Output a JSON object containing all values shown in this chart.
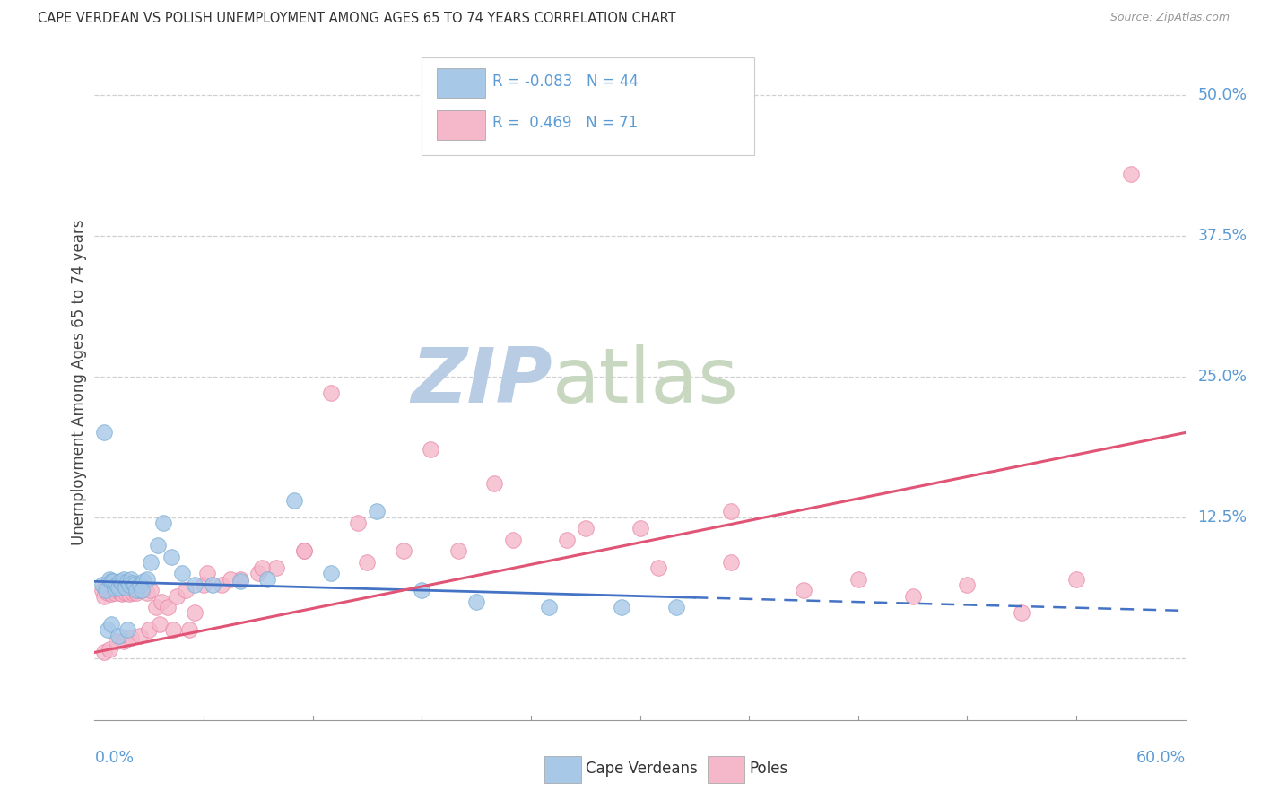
{
  "title": "CAPE VERDEAN VS POLISH UNEMPLOYMENT AMONG AGES 65 TO 74 YEARS CORRELATION CHART",
  "source": "Source: ZipAtlas.com",
  "ylabel": "Unemployment Among Ages 65 to 74 years",
  "xmin": 0.0,
  "xmax": 0.6,
  "ymin": -0.055,
  "ymax": 0.545,
  "yticks": [
    0.0,
    0.125,
    0.25,
    0.375,
    0.5
  ],
  "ytick_labels": [
    "",
    "12.5%",
    "25.0%",
    "37.5%",
    "50.0%"
  ],
  "cv_color": "#a8c8e8",
  "cv_edge_color": "#7aaed4",
  "poles_color": "#f5b8ca",
  "poles_edge_color": "#e888a8",
  "cv_line_color": "#4472c4",
  "poles_line_color": "#e05575",
  "grid_color": "#d0d0d0",
  "title_color": "#333333",
  "right_tick_color": "#5b9bd5",
  "watermark_color": "#c8d8ec",
  "legend_text_color": "#5b9bd5",
  "cape_verdean_x": [
    0.004,
    0.006,
    0.008,
    0.009,
    0.01,
    0.011,
    0.012,
    0.013,
    0.014,
    0.015,
    0.016,
    0.017,
    0.018,
    0.019,
    0.02,
    0.021,
    0.022,
    0.023,
    0.025,
    0.027,
    0.029,
    0.031,
    0.035,
    0.038,
    0.042,
    0.048,
    0.055,
    0.065,
    0.08,
    0.095,
    0.11,
    0.13,
    0.155,
    0.18,
    0.21,
    0.25,
    0.29,
    0.32,
    0.005,
    0.007,
    0.009,
    0.013,
    0.018,
    0.026
  ],
  "cape_verdean_y": [
    0.065,
    0.06,
    0.07,
    0.068,
    0.068,
    0.062,
    0.065,
    0.063,
    0.068,
    0.067,
    0.07,
    0.063,
    0.068,
    0.065,
    0.07,
    0.067,
    0.065,
    0.06,
    0.065,
    0.068,
    0.07,
    0.085,
    0.1,
    0.12,
    0.09,
    0.075,
    0.065,
    0.065,
    0.068,
    0.07,
    0.14,
    0.075,
    0.13,
    0.06,
    0.05,
    0.045,
    0.045,
    0.045,
    0.2,
    0.025,
    0.03,
    0.02,
    0.025,
    0.06
  ],
  "poles_x": [
    0.004,
    0.005,
    0.006,
    0.007,
    0.008,
    0.009,
    0.01,
    0.011,
    0.012,
    0.013,
    0.014,
    0.015,
    0.016,
    0.017,
    0.018,
    0.019,
    0.02,
    0.021,
    0.022,
    0.023,
    0.025,
    0.027,
    0.029,
    0.031,
    0.034,
    0.037,
    0.04,
    0.045,
    0.05,
    0.055,
    0.06,
    0.07,
    0.08,
    0.09,
    0.1,
    0.115,
    0.13,
    0.15,
    0.17,
    0.2,
    0.23,
    0.27,
    0.31,
    0.35,
    0.39,
    0.42,
    0.45,
    0.48,
    0.51,
    0.54,
    0.005,
    0.008,
    0.012,
    0.016,
    0.02,
    0.025,
    0.03,
    0.036,
    0.043,
    0.052,
    0.062,
    0.075,
    0.092,
    0.115,
    0.145,
    0.185,
    0.22,
    0.26,
    0.3,
    0.35,
    0.57
  ],
  "poles_y": [
    0.06,
    0.055,
    0.065,
    0.058,
    0.062,
    0.057,
    0.06,
    0.058,
    0.062,
    0.06,
    0.058,
    0.057,
    0.06,
    0.058,
    0.062,
    0.057,
    0.06,
    0.058,
    0.06,
    0.058,
    0.06,
    0.062,
    0.058,
    0.06,
    0.045,
    0.05,
    0.045,
    0.055,
    0.06,
    0.04,
    0.065,
    0.065,
    0.07,
    0.075,
    0.08,
    0.095,
    0.235,
    0.085,
    0.095,
    0.095,
    0.105,
    0.115,
    0.08,
    0.085,
    0.06,
    0.07,
    0.055,
    0.065,
    0.04,
    0.07,
    0.005,
    0.008,
    0.015,
    0.015,
    0.018,
    0.02,
    0.025,
    0.03,
    0.025,
    0.025,
    0.075,
    0.07,
    0.08,
    0.095,
    0.12,
    0.185,
    0.155,
    0.105,
    0.115,
    0.13,
    0.43
  ],
  "legend_label_cv": "R = -0.083   N = 44",
  "legend_label_poles": "R =  0.469   N = 71",
  "bottom_legend_cv": "Cape Verdeans",
  "bottom_legend_poles": "Poles"
}
